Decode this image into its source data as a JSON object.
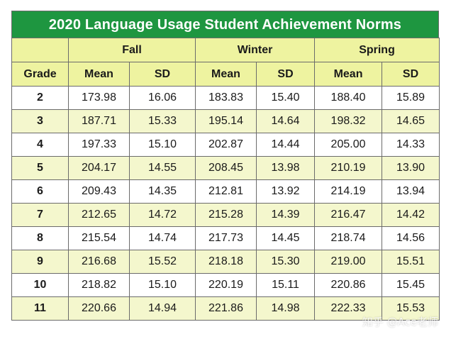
{
  "title": "2020 Language Usage Student Achievement Norms",
  "seasons": [
    "Fall",
    "Winter",
    "Spring"
  ],
  "col_headers": {
    "grade": "Grade",
    "mean": "Mean",
    "sd": "SD"
  },
  "rows": [
    {
      "grade": "2",
      "fall_mean": "173.98",
      "fall_sd": "16.06",
      "winter_mean": "183.83",
      "winter_sd": "15.40",
      "spring_mean": "188.40",
      "spring_sd": "15.89"
    },
    {
      "grade": "3",
      "fall_mean": "187.71",
      "fall_sd": "15.33",
      "winter_mean": "195.14",
      "winter_sd": "14.64",
      "spring_mean": "198.32",
      "spring_sd": "14.65"
    },
    {
      "grade": "4",
      "fall_mean": "197.33",
      "fall_sd": "15.10",
      "winter_mean": "202.87",
      "winter_sd": "14.44",
      "spring_mean": "205.00",
      "spring_sd": "14.33"
    },
    {
      "grade": "5",
      "fall_mean": "204.17",
      "fall_sd": "14.55",
      "winter_mean": "208.45",
      "winter_sd": "13.98",
      "spring_mean": "210.19",
      "spring_sd": "13.90"
    },
    {
      "grade": "6",
      "fall_mean": "209.43",
      "fall_sd": "14.35",
      "winter_mean": "212.81",
      "winter_sd": "13.92",
      "spring_mean": "214.19",
      "spring_sd": "13.94"
    },
    {
      "grade": "7",
      "fall_mean": "212.65",
      "fall_sd": "14.72",
      "winter_mean": "215.28",
      "winter_sd": "14.39",
      "spring_mean": "216.47",
      "spring_sd": "14.42"
    },
    {
      "grade": "8",
      "fall_mean": "215.54",
      "fall_sd": "14.74",
      "winter_mean": "217.73",
      "winter_sd": "14.45",
      "spring_mean": "218.74",
      "spring_sd": "14.56"
    },
    {
      "grade": "9",
      "fall_mean": "216.68",
      "fall_sd": "15.52",
      "winter_mean": "218.18",
      "winter_sd": "15.30",
      "spring_mean": "219.00",
      "spring_sd": "15.51"
    },
    {
      "grade": "10",
      "fall_mean": "218.82",
      "fall_sd": "15.10",
      "winter_mean": "220.19",
      "winter_sd": "15.11",
      "spring_mean": "220.86",
      "spring_sd": "15.45"
    },
    {
      "grade": "11",
      "fall_mean": "220.66",
      "fall_sd": "14.94",
      "winter_mean": "221.86",
      "winter_sd": "14.98",
      "spring_mean": "222.33",
      "spring_sd": "15.53"
    }
  ],
  "watermark": "知乎 @Ace老师",
  "colors": {
    "title_bg": "#1e9640",
    "header_bg": "#eef3a0",
    "alt_row_bg": "#f4f7cd",
    "border": "#6b6b6b"
  }
}
